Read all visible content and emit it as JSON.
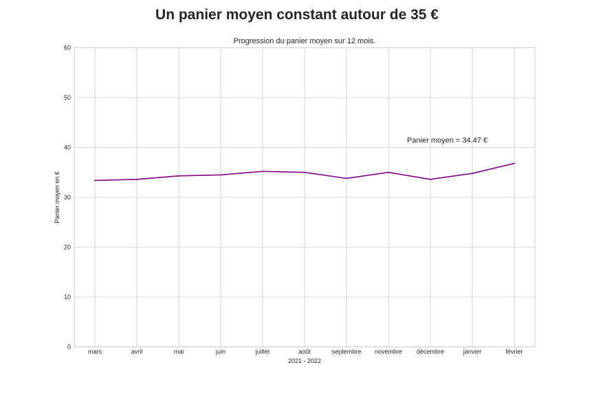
{
  "chart_data": {
    "type": "line",
    "title": "Un panier moyen constant autour de 35 €",
    "subtitle": "Progression du panier moyen sur 12 mois.",
    "xlabel": "2021 - 2022",
    "ylabel": "Panier moyen en €",
    "categories": [
      "mars",
      "avril",
      "mai",
      "juin",
      "juillet",
      "août",
      "septembre",
      "novembre",
      "décembre",
      "janvier",
      "février"
    ],
    "series": [
      {
        "values": [
          33.4,
          33.6,
          34.3,
          34.5,
          35.2,
          35.0,
          33.8,
          35.0,
          33.6,
          34.8,
          36.8
        ],
        "color": "#800080"
      }
    ],
    "ylim": [
      0,
      60
    ],
    "yticks": [
      0,
      10,
      20,
      30,
      40,
      50,
      60
    ],
    "grid": true,
    "annotation": {
      "text": "Panier moyen = 34.47 €",
      "x": "décembre",
      "y": 41.5
    }
  }
}
